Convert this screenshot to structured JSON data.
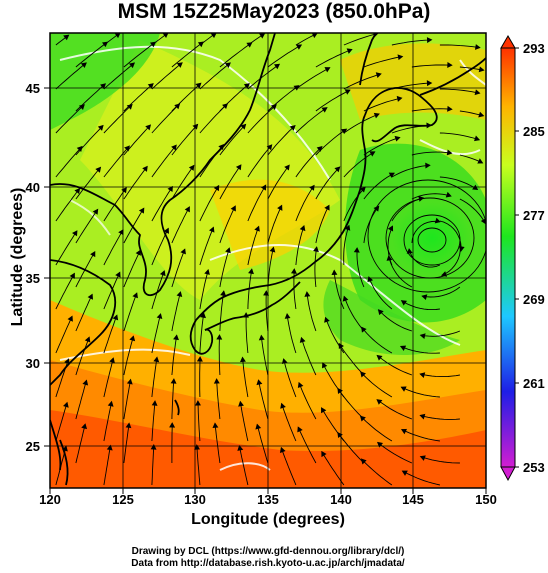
{
  "title": "MSM 15Z25May2023 (850.0hPa)",
  "axes": {
    "xlabel": "Longitude (degrees)",
    "ylabel": "Latitude  (degrees)",
    "x_ticks": [
      "120",
      "125",
      "130",
      "135",
      "140",
      "145",
      "150"
    ],
    "y_ticks": [
      "25",
      "30",
      "35",
      "40",
      "45"
    ],
    "x_range": [
      120,
      150
    ],
    "y_range": [
      22.4,
      47.6
    ]
  },
  "colorbar": {
    "ticks": [
      "293",
      "285",
      "277",
      "269",
      "261",
      "253"
    ],
    "range": [
      253,
      293
    ],
    "colors": [
      "#d21ed2",
      "#1e1ee6",
      "#1ec8ff",
      "#1ee61e",
      "#c8ff1e",
      "#ffb400",
      "#ff3200"
    ]
  },
  "credits": {
    "line1": "Drawing by DCL (https://www.gfd-dennou.org/library/dcl/)",
    "line2": "Data from http://database.rish.kyoto-u.ac.jp/arch/jmadata/"
  },
  "map": {
    "field": "850hPa temperature with wind streamlines",
    "colors": {
      "warm_south": "#ff5000",
      "orange": "#ffa000",
      "yellow_green": "#c8ff1e",
      "green": "#3cdc1e",
      "coast": "#000000",
      "grid": "#000000",
      "contour": "#ffffff"
    },
    "low_center": {
      "lon": 145.5,
      "lat": 37.5
    }
  }
}
